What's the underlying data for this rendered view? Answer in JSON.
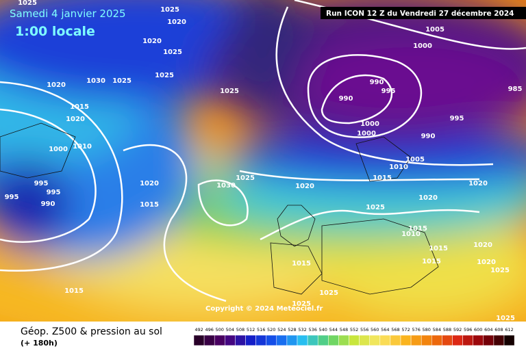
{
  "header": {
    "date": "Samedi 4 janvier 2025",
    "time": "1:00 locale",
    "run": "Run ICON 12 Z du Vendredi 27 décembre 2024"
  },
  "copyright": "Copyright © 2024 Meteociel.fr",
  "footer": {
    "title": "Géop. Z500 & pression au sol",
    "lead": "(+ 180h)"
  },
  "scale": {
    "labels": [
      "492",
      "496",
      "500",
      "504",
      "508",
      "512",
      "516",
      "520",
      "524",
      "528",
      "532",
      "536",
      "540",
      "544",
      "548",
      "552",
      "556",
      "560",
      "564",
      "568",
      "572",
      "576",
      "580",
      "584",
      "588",
      "592",
      "596",
      "600",
      "604",
      "608",
      "612"
    ]
  },
  "isobar_labels": [
    "1025",
    "1025",
    "1020",
    "1020",
    "1025",
    "1030",
    "1025",
    "1025",
    "1025",
    "1020",
    "1015",
    "1020",
    "1000",
    "1010",
    "995",
    "995",
    "990",
    "995",
    "1020",
    "1015",
    "1030",
    "1025",
    "1020",
    "1015",
    "1015",
    "1025",
    "1005",
    "1000",
    "990",
    "995",
    "990",
    "1000",
    "1000",
    "995",
    "990",
    "985",
    "1010",
    "1005",
    "1015",
    "1020",
    "1020",
    "1025",
    "1015",
    "1010",
    "1015",
    "1015",
    "1020",
    "1020",
    "1025",
    "1025",
    "1025"
  ]
}
